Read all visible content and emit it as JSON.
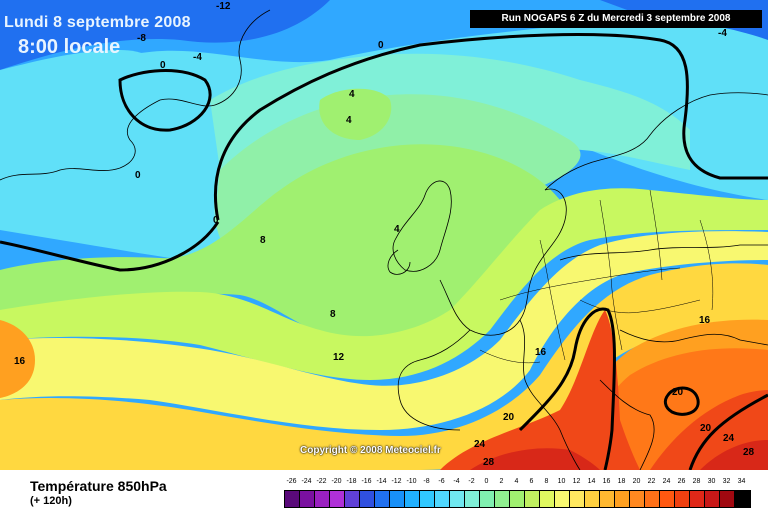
{
  "header": {
    "date": "Lundi 8 septembre 2008",
    "time": "8:00 locale",
    "run": "Run NOGAPS 6 Z du Mercredi 3 septembre 2008"
  },
  "copyright": "Copyright © 2008 Meteociel.fr",
  "footer": {
    "title": "Température 850hPa",
    "subtitle": "(+ 120h)"
  },
  "scale": {
    "labels": [
      "-26",
      "-24",
      "-22",
      "-20",
      "-18",
      "-16",
      "-14",
      "-12",
      "-10",
      "-8",
      "-6",
      "-4",
      "-2",
      "0",
      "2",
      "4",
      "6",
      "8",
      "10",
      "12",
      "14",
      "16",
      "18",
      "20",
      "22",
      "24",
      "26",
      "28",
      "30",
      "32",
      "34"
    ],
    "colors": [
      "#5a0a7a",
      "#7a10a0",
      "#9a20c0",
      "#b030d8",
      "#6040d8",
      "#3050e0",
      "#2070f0",
      "#1890f8",
      "#20b0ff",
      "#30c8ff",
      "#50d8ff",
      "#70e8f0",
      "#80f0d8",
      "#80f0b0",
      "#90f090",
      "#a0f070",
      "#c0f060",
      "#e0f860",
      "#f8f870",
      "#ffe860",
      "#ffd040",
      "#ffb830",
      "#ffa020",
      "#ff8820",
      "#ff7018",
      "#ff5810",
      "#f04010",
      "#e02818",
      "#c81818",
      "#a00810",
      "#000000"
    ]
  },
  "map": {
    "colors": {
      "deep_blue": "#2070f0",
      "blue": "#30a8ff",
      "cyan": "#60e0f8",
      "aqua": "#80f0d8",
      "mint": "#90f0a8",
      "green": "#a0f070",
      "lime": "#c8f860",
      "yellow": "#f8f870",
      "gold": "#ffd840",
      "orange": "#ffa020",
      "dark_orange": "#ff7818",
      "red": "#f04818",
      "crimson": "#d82818"
    },
    "contour_labels": [
      "-12",
      "-8",
      "-4",
      "0",
      "-4",
      "0",
      "0",
      "0",
      "4",
      "4",
      "8",
      "4",
      "8",
      "12",
      "16",
      "16",
      "20",
      "20",
      "20",
      "24",
      "24",
      "28",
      "28",
      "16"
    ]
  }
}
